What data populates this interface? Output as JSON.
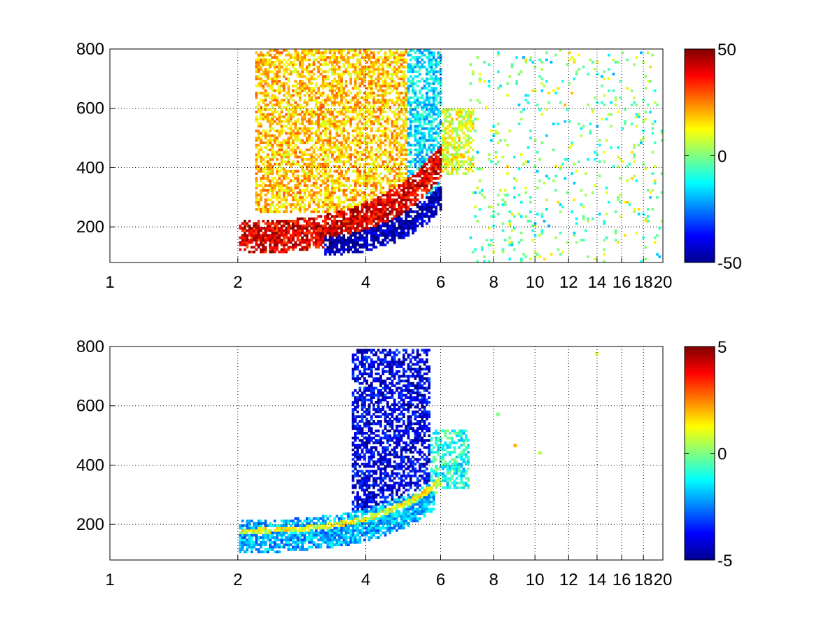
{
  "chart_data": [
    {
      "type": "heatmap",
      "title": "",
      "xlabel": "",
      "ylabel": "",
      "xlim": [
        1,
        20
      ],
      "ylim": [
        80,
        800
      ],
      "x_scale": "log",
      "x_ticks": [
        1,
        2,
        4,
        6,
        8,
        10,
        12,
        14,
        16,
        18,
        20
      ],
      "y_ticks": [
        200,
        400,
        600,
        800
      ],
      "grid": true,
      "colormap": "jet",
      "clim": [
        -50,
        50
      ],
      "colorbar_ticks": [
        -50,
        0,
        50
      ],
      "colorbar_position": "right",
      "features": [
        {
          "kind": "band",
          "x_range": [
            2,
            6
          ],
          "y_start": 165,
          "y_end": 420,
          "width": 55,
          "value": 40
        },
        {
          "kind": "band",
          "x_range": [
            3.2,
            6
          ],
          "y_start": 150,
          "y_end": 300,
          "width": 45,
          "value": -45
        },
        {
          "kind": "region",
          "x_range": [
            2.2,
            5
          ],
          "y_range": [
            250,
            800
          ],
          "value": 18
        },
        {
          "kind": "region",
          "x_range": [
            4.5,
            6
          ],
          "y_range": [
            300,
            800
          ],
          "value": -15
        },
        {
          "kind": "region",
          "x_range": [
            6,
            7.2
          ],
          "y_range": [
            380,
            600
          ],
          "value": 10
        },
        {
          "kind": "sparse_scatter",
          "x_range": [
            7,
            20
          ],
          "y_range": [
            80,
            800
          ],
          "value_range": [
            -12,
            10
          ]
        }
      ]
    },
    {
      "type": "heatmap",
      "title": "",
      "xlabel": "",
      "ylabel": "",
      "xlim": [
        1,
        20
      ],
      "ylim": [
        80,
        800
      ],
      "x_scale": "log",
      "x_ticks": [
        1,
        2,
        4,
        6,
        8,
        10,
        12,
        14,
        16,
        18,
        20
      ],
      "y_ticks": [
        200,
        400,
        600,
        800
      ],
      "grid": true,
      "colormap": "jet",
      "clim": [
        -5,
        5
      ],
      "colorbar_ticks": [
        -5,
        0,
        5
      ],
      "colorbar_position": "right",
      "features": [
        {
          "kind": "region",
          "x_range": [
            3.7,
            5.7
          ],
          "y_range": [
            250,
            790
          ],
          "value": -4
        },
        {
          "kind": "band",
          "x_range": [
            2,
            6
          ],
          "y_start": 175,
          "y_end": 340,
          "width": 25,
          "value": 1
        },
        {
          "kind": "band",
          "x_range": [
            2,
            5.8
          ],
          "y_start": 160,
          "y_end": 300,
          "width": 55,
          "value": -2
        },
        {
          "kind": "region",
          "x_range": [
            5.6,
            7
          ],
          "y_range": [
            320,
            520
          ],
          "value": -1
        },
        {
          "kind": "points",
          "points": [
            [
              14,
              775,
              1
            ],
            [
              9,
              465,
              2
            ],
            [
              10.3,
              440,
              0.5
            ],
            [
              8.2,
              570,
              0
            ]
          ]
        }
      ]
    }
  ]
}
